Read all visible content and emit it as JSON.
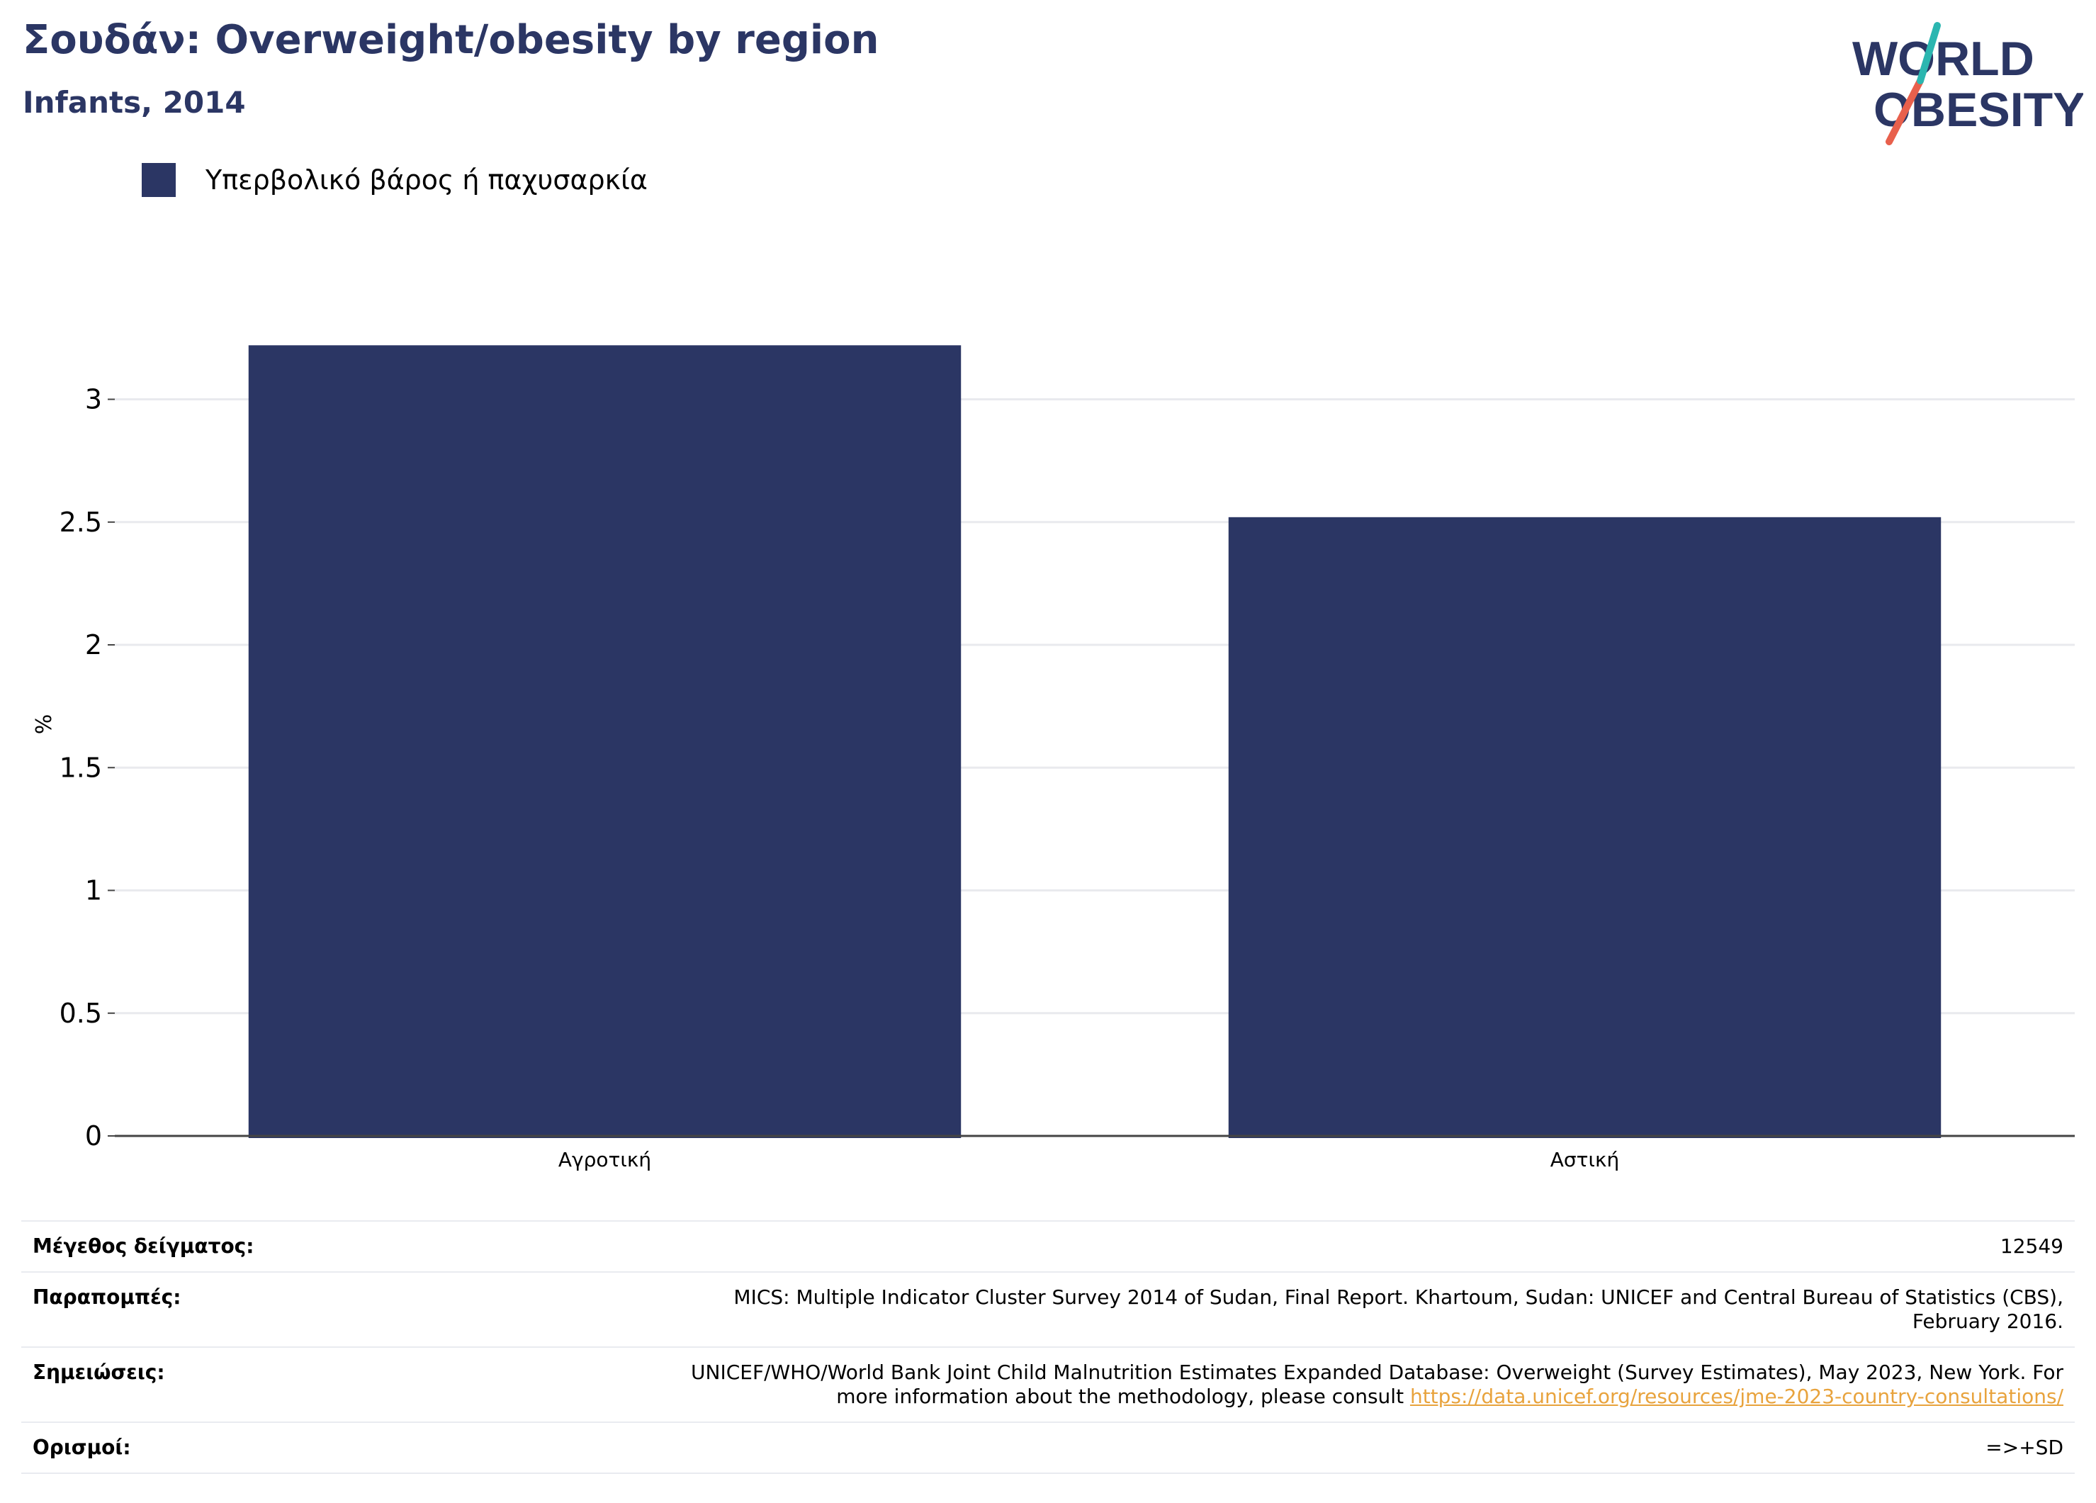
{
  "title": "Σουδάν: Overweight/obesity by region",
  "subtitle": "Infants, 2014",
  "logo": {
    "line1": "WORLD",
    "line2": "OBESITY",
    "colors": {
      "text": "#2b3664",
      "teal": "#2bb6b0",
      "coral": "#e8604c"
    }
  },
  "colors": {
    "bar": "#2b3664",
    "grid": "#e9eaee",
    "axis": "#444444",
    "link": "#e8a33d"
  },
  "chart_data": {
    "type": "bar",
    "categories": [
      "Αγροτική",
      "Αστική"
    ],
    "series": [
      {
        "name": "Υπερβολικό βάρος ή παχυσαρκία",
        "values": [
          3.22,
          2.52
        ]
      }
    ],
    "ylabel": "%",
    "xlabel": "",
    "ylim": [
      0,
      3.2
    ],
    "yticks": [
      0,
      0.5,
      1,
      1.5,
      2,
      2.5,
      3
    ],
    "ytick_labels": [
      "0",
      "0.5",
      "1",
      "1.5",
      "2",
      "2.5",
      "3"
    ],
    "grid": true,
    "legend_position": "top-left"
  },
  "info": {
    "sample_size": {
      "label": "Μέγεθος δείγματος:",
      "value": "12549"
    },
    "references": {
      "label": "Παραπομπές:",
      "value_line1": "MICS: Multiple Indicator Cluster Survey 2014 of Sudan, Final Report. Khartoum, Sudan: UNICEF and Central Bureau of Statistics (CBS),",
      "value_line2": "February 2016."
    },
    "notes": {
      "label": "Σημειώσεις:",
      "value_line1": "UNICEF/WHO/World Bank Joint Child Malnutrition Estimates Expanded Database: Overweight (Survey Estimates), May 2023, New York. For",
      "value_line2": "more information about the methodology, please consult ",
      "link": "https://data.unicef.org/resources/jme-2023-country-consultations/"
    },
    "definitions": {
      "label": "Ορισμοί:",
      "value": "=>+SD"
    }
  }
}
